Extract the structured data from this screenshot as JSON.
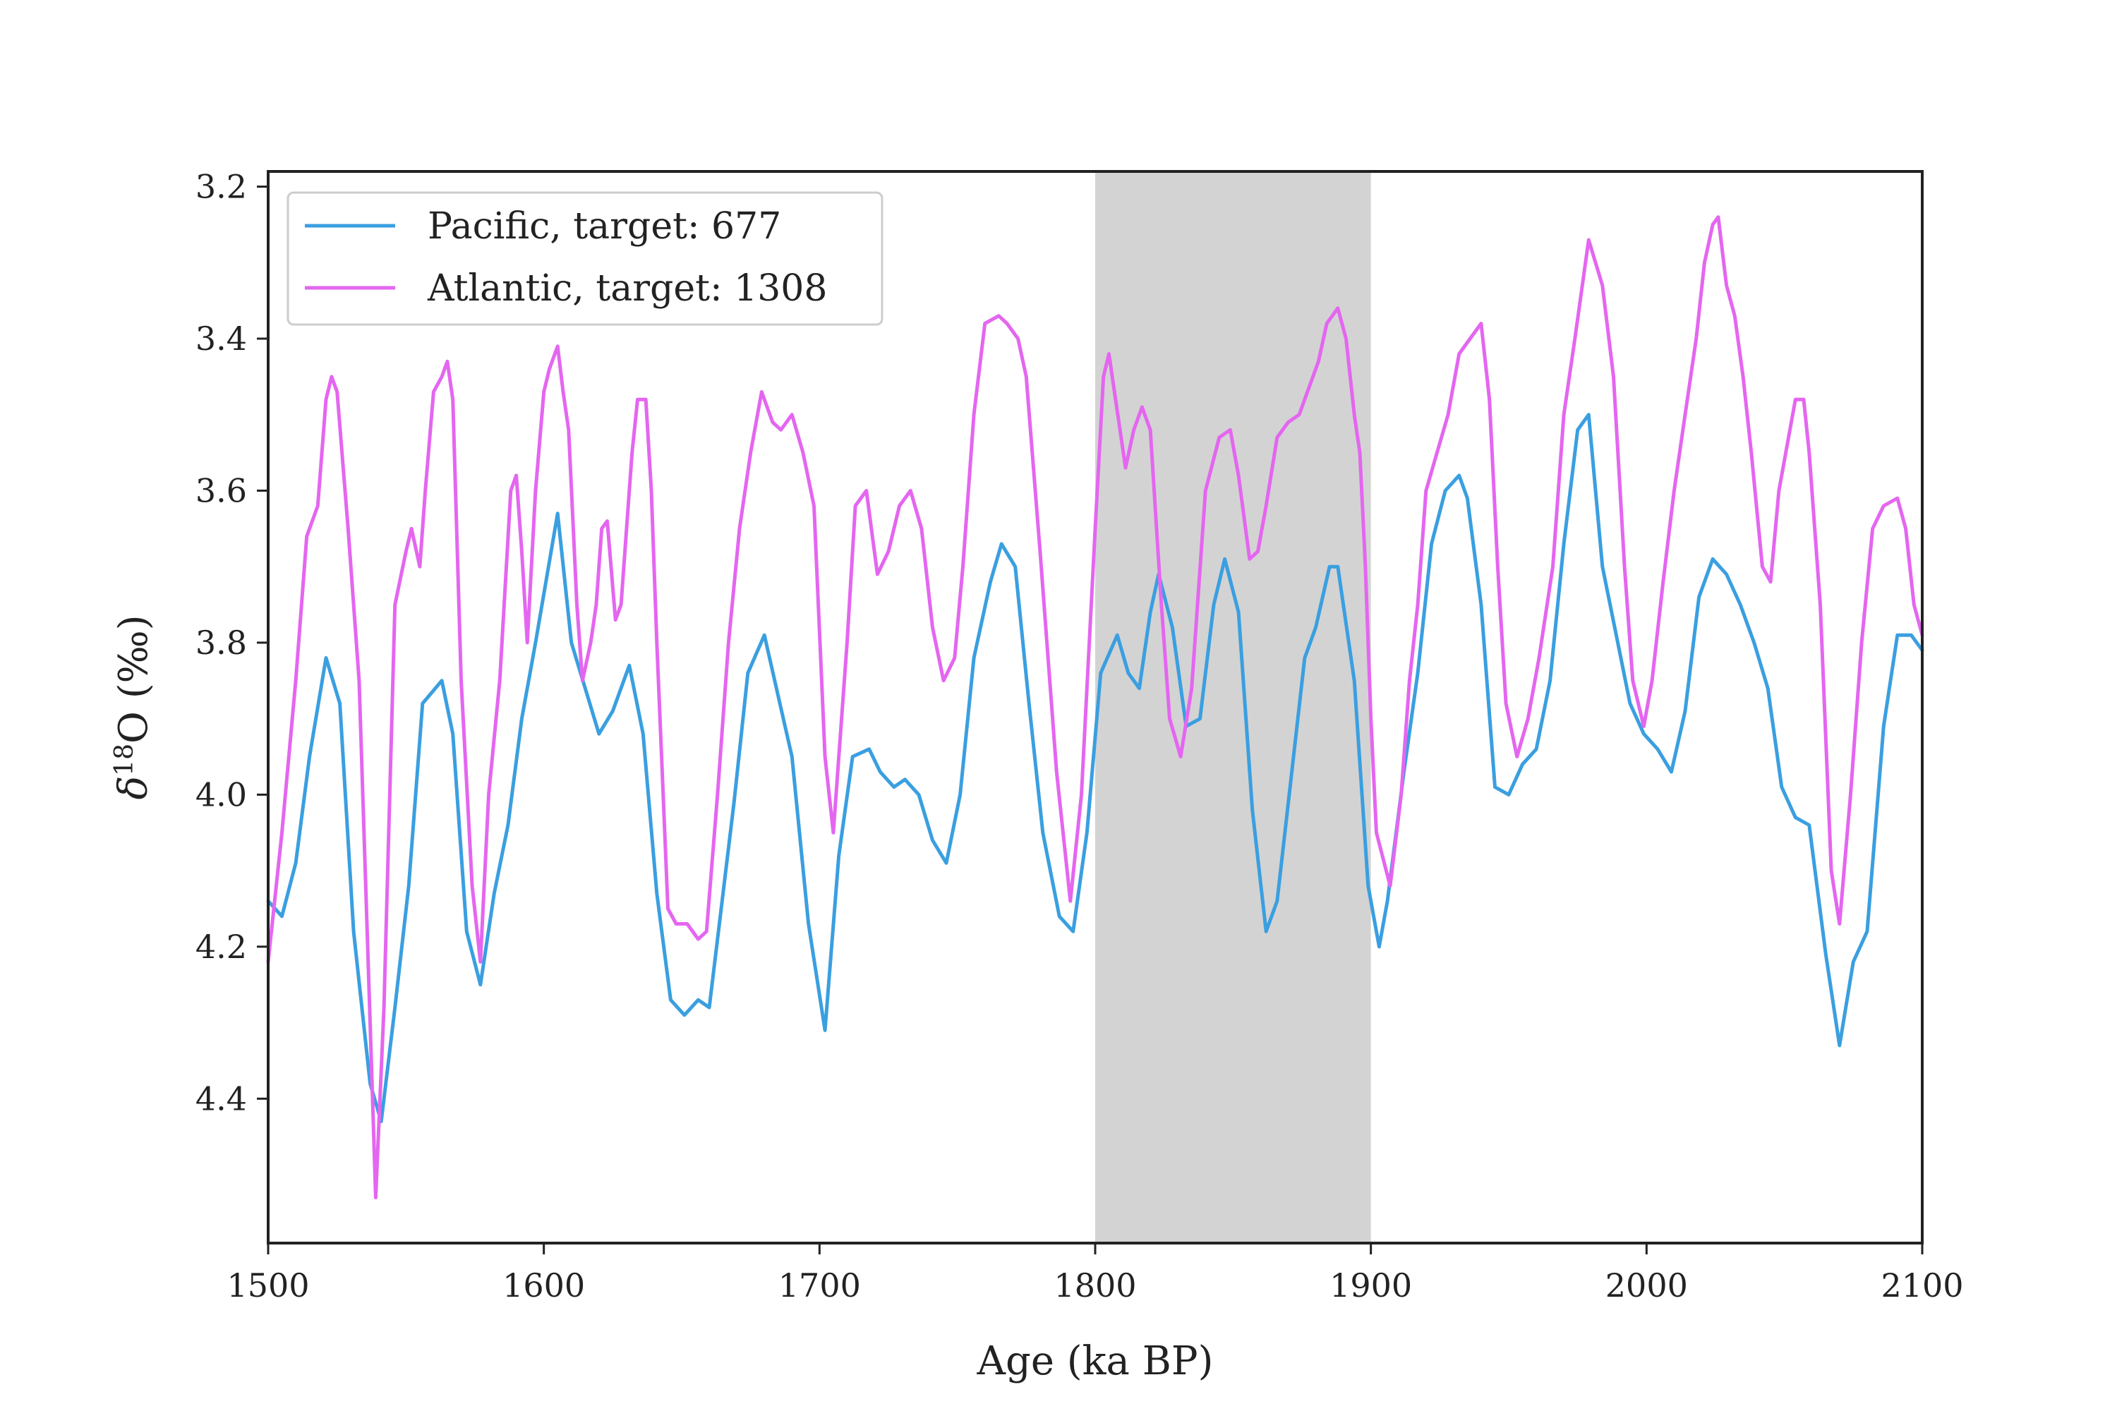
{
  "chart_data": {
    "type": "line",
    "xlabel": "Age (ka BP)",
    "ylabel": {
      "prefix": "δ",
      "sup": "18",
      "suffix": "O (‰)"
    },
    "xlim": [
      1500,
      2100
    ],
    "ylim": [
      3.18,
      4.59
    ],
    "y_inverted": true,
    "x_ticks": [
      1500,
      1600,
      1700,
      1800,
      1900,
      2000,
      2100
    ],
    "x_tick_labels": [
      "1500",
      "1600",
      "1700",
      "1800",
      "1900",
      "2000",
      "2100"
    ],
    "y_ticks": [
      3.2,
      3.4,
      3.6,
      3.8,
      4.0,
      4.2,
      4.4
    ],
    "y_tick_labels": [
      "3.2",
      "3.4",
      "3.6",
      "3.8",
      "4.0",
      "4.2",
      "4.4"
    ],
    "grid": false,
    "legend_position": "top-left",
    "shaded_region": {
      "x": [
        1800,
        1900
      ],
      "color": "#d3d3d3"
    },
    "series": [
      {
        "name": "Pacific, target: 677",
        "color": "#3a9fe0",
        "x": [
          1500,
          1505,
          1510,
          1515,
          1521,
          1526,
          1531,
          1537,
          1541,
          1546,
          1551,
          1556,
          1563,
          1567,
          1572,
          1577,
          1582,
          1587,
          1592,
          1597,
          1605,
          1610,
          1615,
          1620,
          1625,
          1631,
          1636,
          1641,
          1646,
          1651,
          1656,
          1660,
          1664,
          1669,
          1674,
          1680,
          1685,
          1690,
          1696,
          1702,
          1707,
          1712,
          1718,
          1722,
          1727,
          1731,
          1736,
          1741,
          1746,
          1751,
          1756,
          1762,
          1766,
          1771,
          1776,
          1781,
          1787,
          1792,
          1797,
          1802,
          1808,
          1812,
          1816,
          1820,
          1823,
          1828,
          1833,
          1838,
          1843,
          1847,
          1852,
          1857,
          1862,
          1866,
          1871,
          1876,
          1880,
          1885,
          1888,
          1894,
          1899,
          1903,
          1906,
          1912,
          1917,
          1922,
          1927,
          1932,
          1935,
          1940,
          1945,
          1950,
          1955,
          1960,
          1965,
          1970,
          1975,
          1979,
          1984,
          1989,
          1994,
          1999,
          2004,
          2009,
          2014,
          2019,
          2024,
          2029,
          2034,
          2039,
          2044,
          2049,
          2054,
          2059,
          2065,
          2070,
          2075,
          2080,
          2086,
          2091,
          2096,
          2100
        ],
        "y": [
          4.14,
          4.16,
          4.09,
          3.95,
          3.82,
          3.88,
          4.18,
          4.38,
          4.43,
          4.28,
          4.12,
          3.88,
          3.85,
          3.92,
          4.18,
          4.25,
          4.13,
          4.04,
          3.9,
          3.8,
          3.63,
          3.8,
          3.86,
          3.92,
          3.89,
          3.83,
          3.92,
          4.13,
          4.27,
          4.29,
          4.27,
          4.28,
          4.16,
          4.01,
          3.84,
          3.79,
          3.87,
          3.95,
          4.17,
          4.31,
          4.08,
          3.95,
          3.94,
          3.97,
          3.99,
          3.98,
          4.0,
          4.06,
          4.09,
          4.0,
          3.82,
          3.72,
          3.67,
          3.7,
          3.88,
          4.05,
          4.16,
          4.18,
          4.05,
          3.84,
          3.79,
          3.84,
          3.86,
          3.76,
          3.71,
          3.78,
          3.91,
          3.9,
          3.75,
          3.69,
          3.76,
          4.02,
          4.18,
          4.14,
          3.98,
          3.82,
          3.78,
          3.7,
          3.7,
          3.85,
          4.12,
          4.2,
          4.14,
          3.97,
          3.84,
          3.67,
          3.6,
          3.58,
          3.61,
          3.75,
          3.99,
          4.0,
          3.96,
          3.94,
          3.85,
          3.67,
          3.52,
          3.5,
          3.7,
          3.79,
          3.88,
          3.92,
          3.94,
          3.97,
          3.89,
          3.74,
          3.69,
          3.71,
          3.75,
          3.8,
          3.86,
          3.99,
          4.03,
          4.04,
          4.21,
          4.33,
          4.22,
          4.18,
          3.91,
          3.79,
          3.79,
          3.81
        ]
      },
      {
        "name": "Atlantic, target: 1308",
        "color": "#e466f0",
        "x": [
          1500,
          1505,
          1510,
          1514,
          1518,
          1521,
          1523,
          1525,
          1529,
          1533,
          1537,
          1539,
          1542,
          1546,
          1550,
          1552,
          1555,
          1557,
          1560,
          1563,
          1565,
          1567,
          1570,
          1574,
          1577,
          1580,
          1584,
          1588,
          1590,
          1592,
          1594,
          1597,
          1600,
          1602,
          1605,
          1607,
          1609,
          1612,
          1614,
          1617,
          1619,
          1621,
          1623,
          1626,
          1628,
          1632,
          1634,
          1637,
          1639,
          1641,
          1645,
          1648,
          1652,
          1656,
          1659,
          1663,
          1667,
          1671,
          1675,
          1679,
          1683,
          1686,
          1690,
          1694,
          1698,
          1702,
          1705,
          1710,
          1713,
          1717,
          1721,
          1725,
          1729,
          1733,
          1737,
          1741,
          1745,
          1749,
          1752,
          1756,
          1760,
          1765,
          1768,
          1772,
          1775,
          1780,
          1786,
          1791,
          1795,
          1800,
          1803,
          1805,
          1807,
          1811,
          1814,
          1817,
          1820,
          1824,
          1827,
          1831,
          1835,
          1840,
          1845,
          1849,
          1852,
          1856,
          1859,
          1862,
          1866,
          1870,
          1874,
          1877,
          1881,
          1884,
          1888,
          1891,
          1894,
          1896,
          1898,
          1900,
          1902,
          1907,
          1911,
          1914,
          1917,
          1920,
          1924,
          1928,
          1932,
          1936,
          1940,
          1943,
          1946,
          1949,
          1953,
          1957,
          1961,
          1966,
          1970,
          1974,
          1979,
          1984,
          1988,
          1992,
          1995,
          1999,
          2002,
          2006,
          2010,
          2014,
          2018,
          2021,
          2024,
          2026,
          2029,
          2032,
          2035,
          2038,
          2042,
          2045,
          2048,
          2051,
          2054,
          2057,
          2059,
          2063,
          2067,
          2070,
          2074,
          2078,
          2082,
          2086,
          2091,
          2094,
          2097,
          2100
        ],
        "y": [
          4.22,
          4.05,
          3.85,
          3.66,
          3.62,
          3.48,
          3.45,
          3.47,
          3.65,
          3.85,
          4.3,
          4.53,
          4.28,
          3.75,
          3.68,
          3.65,
          3.7,
          3.6,
          3.47,
          3.45,
          3.43,
          3.48,
          3.85,
          4.12,
          4.22,
          4.0,
          3.85,
          3.6,
          3.58,
          3.68,
          3.8,
          3.6,
          3.47,
          3.44,
          3.41,
          3.47,
          3.52,
          3.75,
          3.85,
          3.8,
          3.75,
          3.65,
          3.64,
          3.77,
          3.75,
          3.55,
          3.48,
          3.48,
          3.6,
          3.8,
          4.15,
          4.17,
          4.17,
          4.19,
          4.18,
          4.0,
          3.8,
          3.65,
          3.55,
          3.47,
          3.51,
          3.52,
          3.5,
          3.55,
          3.62,
          3.95,
          4.05,
          3.8,
          3.62,
          3.6,
          3.71,
          3.68,
          3.62,
          3.6,
          3.65,
          3.78,
          3.85,
          3.82,
          3.7,
          3.5,
          3.38,
          3.37,
          3.38,
          3.4,
          3.45,
          3.68,
          3.97,
          4.14,
          4.0,
          3.65,
          3.45,
          3.42,
          3.47,
          3.57,
          3.52,
          3.49,
          3.52,
          3.75,
          3.9,
          3.95,
          3.86,
          3.6,
          3.53,
          3.52,
          3.58,
          3.69,
          3.68,
          3.62,
          3.53,
          3.51,
          3.5,
          3.47,
          3.43,
          3.38,
          3.36,
          3.4,
          3.5,
          3.55,
          3.7,
          3.9,
          4.05,
          4.12,
          4.0,
          3.85,
          3.75,
          3.6,
          3.55,
          3.5,
          3.42,
          3.4,
          3.38,
          3.48,
          3.7,
          3.88,
          3.95,
          3.9,
          3.82,
          3.7,
          3.5,
          3.4,
          3.27,
          3.33,
          3.45,
          3.7,
          3.85,
          3.91,
          3.85,
          3.72,
          3.6,
          3.5,
          3.4,
          3.3,
          3.25,
          3.24,
          3.33,
          3.37,
          3.45,
          3.55,
          3.7,
          3.72,
          3.6,
          3.54,
          3.48,
          3.48,
          3.55,
          3.75,
          4.1,
          4.17,
          4.0,
          3.8,
          3.65,
          3.62,
          3.61,
          3.65,
          3.75,
          3.79
        ]
      }
    ]
  }
}
